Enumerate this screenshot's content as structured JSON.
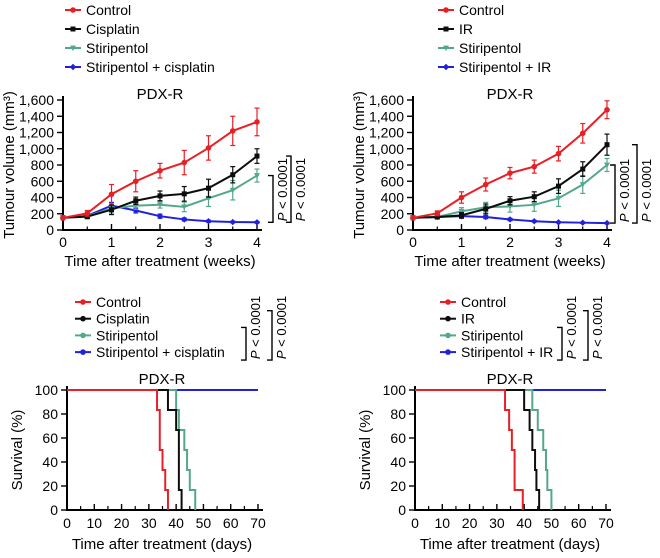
{
  "figure": {
    "background": "#ffffff"
  },
  "chart_data": [
    {
      "id": "tumour-volume-cisplatin",
      "type": "line",
      "title": "PDX-R",
      "xlabel": "Time after treatment (weeks)",
      "ylabel": "Tumour volume (mm³)",
      "xlim": [
        0,
        4
      ],
      "xticks": [
        0,
        1,
        2,
        3,
        4
      ],
      "x_minor_step": 0.5,
      "ylim": [
        0,
        1600
      ],
      "yticks": [
        0,
        200,
        400,
        600,
        800,
        1000,
        1200,
        1400,
        1600
      ],
      "ytick_labels": [
        "0",
        "200",
        "400",
        "600",
        "800",
        "1,000",
        "1,200",
        "1,400",
        "1,600"
      ],
      "legend_position": "above",
      "grid": false,
      "x": [
        0,
        0.5,
        1,
        1.5,
        2,
        2.5,
        3,
        3.5,
        4
      ],
      "series": [
        {
          "name": "Control",
          "color": "#e81f25",
          "marker": "circle",
          "values": [
            150,
            205,
            440,
            600,
            730,
            830,
            1010,
            1220,
            1330
          ],
          "errors": [
            25,
            35,
            120,
            130,
            90,
            150,
            150,
            180,
            170
          ]
        },
        {
          "name": "Cisplatin",
          "color": "#0d0d0d",
          "marker": "square",
          "values": [
            150,
            165,
            250,
            360,
            420,
            445,
            515,
            680,
            910
          ],
          "errors": [
            20,
            25,
            60,
            45,
            60,
            90,
            110,
            100,
            90
          ]
        },
        {
          "name": "Stiripentol",
          "color": "#53a88b",
          "marker": "triangle",
          "values": [
            150,
            170,
            265,
            300,
            310,
            285,
            390,
            490,
            670
          ],
          "errors": [
            15,
            25,
            55,
            45,
            40,
            60,
            100,
            120,
            80
          ]
        },
        {
          "name": "Stiripentol + cisplatin",
          "color": "#2121dc",
          "marker": "diamond",
          "values": [
            150,
            175,
            300,
            240,
            170,
            130,
            108,
            98,
            95
          ],
          "errors": [
            12,
            18,
            40,
            30,
            25,
            18,
            12,
            10,
            10
          ]
        }
      ],
      "pvalues": [
        {
          "text": "P < 0.0001",
          "series_a": "Stiripentol",
          "series_b": "Stiripentol + cisplatin"
        },
        {
          "text": "P < 0.0001",
          "series_a": "Cisplatin",
          "series_b": "Stiripentol + cisplatin"
        }
      ]
    },
    {
      "id": "tumour-volume-ir",
      "type": "line",
      "title": "PDX-R",
      "xlabel": "Time after treatment (weeks)",
      "ylabel": "Tumour volume (mm³)",
      "xlim": [
        0,
        4
      ],
      "xticks": [
        0,
        1,
        2,
        3,
        4
      ],
      "x_minor_step": 0.5,
      "ylim": [
        0,
        1600
      ],
      "yticks": [
        0,
        200,
        400,
        600,
        800,
        1000,
        1200,
        1400,
        1600
      ],
      "ytick_labels": [
        "0",
        "200",
        "400",
        "600",
        "800",
        "1,000",
        "1,200",
        "1,400",
        "1,600"
      ],
      "legend_position": "above",
      "grid": false,
      "x": [
        0,
        0.5,
        1,
        1.5,
        2,
        2.5,
        3,
        3.5,
        4
      ],
      "series": [
        {
          "name": "Control",
          "color": "#e81f25",
          "marker": "circle",
          "values": [
            150,
            205,
            400,
            560,
            700,
            780,
            940,
            1190,
            1480
          ],
          "errors": [
            20,
            30,
            70,
            80,
            70,
            80,
            90,
            120,
            110
          ]
        },
        {
          "name": "IR",
          "color": "#0d0d0d",
          "marker": "square",
          "values": [
            150,
            160,
            180,
            260,
            360,
            410,
            540,
            750,
            1050
          ],
          "errors": [
            15,
            18,
            35,
            60,
            50,
            60,
            90,
            90,
            130
          ]
        },
        {
          "name": "Stiripentol",
          "color": "#53a88b",
          "marker": "triangle",
          "values": [
            150,
            160,
            230,
            280,
            290,
            310,
            390,
            560,
            800
          ],
          "errors": [
            15,
            20,
            45,
            60,
            70,
            80,
            100,
            110,
            80
          ]
        },
        {
          "name": "Stiripentol + IR",
          "color": "#2121dc",
          "marker": "diamond",
          "values": [
            150,
            160,
            170,
            160,
            130,
            108,
            95,
            90,
            85
          ],
          "errors": [
            10,
            12,
            20,
            20,
            15,
            10,
            8,
            8,
            8
          ]
        }
      ],
      "pvalues": [
        {
          "text": "P < 0.0001",
          "series_a": "Stiripentol",
          "series_b": "Stiripentol + IR"
        },
        {
          "text": "P < 0.0001",
          "series_a": "IR",
          "series_b": "Stiripentol + IR"
        }
      ]
    },
    {
      "id": "survival-cisplatin",
      "type": "km",
      "title": "PDX-R",
      "xlabel": "Time after treatment (days)",
      "ylabel": "Survival (%)",
      "xlim": [
        0,
        70
      ],
      "xticks": [
        0,
        10,
        20,
        30,
        40,
        50,
        60,
        70
      ],
      "x_minor_step": 5,
      "ylim": [
        0,
        100
      ],
      "yticks": [
        0,
        20,
        40,
        60,
        80,
        100
      ],
      "ytick_labels": [
        "0",
        "20",
        "40",
        "60",
        "80",
        "100"
      ],
      "legend_position": "above",
      "grid": false,
      "series": [
        {
          "name": "Control",
          "color": "#e81f25",
          "drops": [
            [
              33,
              83.3
            ],
            [
              34,
              50
            ],
            [
              35,
              33.3
            ],
            [
              36,
              16.7
            ],
            [
              37,
              0
            ]
          ],
          "end": 37
        },
        {
          "name": "Cisplatin",
          "color": "#0d0d0d",
          "drops": [
            [
              37,
              83.3
            ],
            [
              40,
              66.7
            ],
            [
              41,
              16.7
            ],
            [
              42,
              0
            ]
          ],
          "end": 42
        },
        {
          "name": "Stiripentol",
          "color": "#53a88b",
          "drops": [
            [
              40,
              83.3
            ],
            [
              41,
              66.7
            ],
            [
              43,
              50
            ],
            [
              44,
              33.3
            ],
            [
              45,
              16.7
            ],
            [
              47,
              0
            ]
          ],
          "end": 47
        },
        {
          "name": "Stiripentol + cisplatin",
          "color": "#2121dc",
          "drops": [],
          "end": 70
        }
      ],
      "pvalues": [
        {
          "text": "P < 0.0001",
          "rows": [
            2,
            3
          ]
        },
        {
          "text": "P < 0.0001",
          "rows": [
            1,
            3
          ]
        }
      ]
    },
    {
      "id": "survival-ir",
      "type": "km",
      "title": "PDX-R",
      "xlabel": "Time after treatment (days)",
      "ylabel": "Survival (%)",
      "xlim": [
        0,
        70
      ],
      "xticks": [
        0,
        10,
        20,
        30,
        40,
        50,
        60,
        70
      ],
      "x_minor_step": 5,
      "ylim": [
        0,
        100
      ],
      "yticks": [
        0,
        20,
        40,
        60,
        80,
        100
      ],
      "ytick_labels": [
        "0",
        "20",
        "40",
        "60",
        "80",
        "100"
      ],
      "legend_position": "above",
      "grid": false,
      "series": [
        {
          "name": "Control",
          "color": "#e81f25",
          "drops": [
            [
              33,
              83.3
            ],
            [
              34.5,
              66.7
            ],
            [
              35.5,
              50
            ],
            [
              36.5,
              16.7
            ],
            [
              39.5,
              0
            ]
          ],
          "end": 39.5
        },
        {
          "name": "IR",
          "color": "#0d0d0d",
          "drops": [
            [
              40,
              83.3
            ],
            [
              42,
              66.7
            ],
            [
              43,
              50
            ],
            [
              44,
              33.3
            ],
            [
              44.5,
              16.7
            ],
            [
              45.5,
              0
            ]
          ],
          "end": 45.5
        },
        {
          "name": "Stiripentol",
          "color": "#53a88b",
          "drops": [
            [
              43,
              83.3
            ],
            [
              45,
              66.7
            ],
            [
              47,
              50
            ],
            [
              48,
              33.3
            ],
            [
              48.5,
              16.7
            ],
            [
              50,
              0
            ]
          ],
          "end": 50
        },
        {
          "name": "Stiripentol + IR",
          "color": "#2121dc",
          "drops": [],
          "end": 70
        }
      ],
      "pvalues": [
        {
          "text": "P < 0.0001",
          "rows": [
            2,
            3
          ]
        },
        {
          "text": "P < 0.0001",
          "rows": [
            1,
            3
          ]
        }
      ]
    }
  ]
}
